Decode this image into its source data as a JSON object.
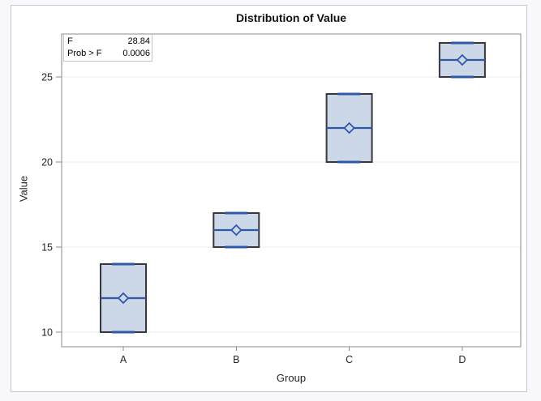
{
  "window": {
    "background_color": "#f8f8fc",
    "paper_color": "#ffffff",
    "paper_border_color": "#c9c9c9"
  },
  "chart_data": {
    "type": "boxplot",
    "title": "Distribution of Value",
    "xlabel": "Group",
    "ylabel": "Value",
    "categories": [
      "A",
      "B",
      "C",
      "D"
    ],
    "yticks": [
      10,
      15,
      20,
      25
    ],
    "ylim": [
      9.1,
      27.5
    ],
    "grid": "horizontal-major",
    "legend": "none",
    "series": [
      {
        "group": "A",
        "whisker_low": 10,
        "q1": 10,
        "median": 12,
        "mean": 12,
        "q3": 14,
        "whisker_high": 14
      },
      {
        "group": "B",
        "whisker_low": 15,
        "q1": 15,
        "median": 16,
        "mean": 16,
        "q3": 17,
        "whisker_high": 17
      },
      {
        "group": "C",
        "whisker_low": 20,
        "q1": 20,
        "median": 22,
        "mean": 22,
        "q3": 24,
        "whisker_high": 24
      },
      {
        "group": "D",
        "whisker_low": 25,
        "q1": 25,
        "median": 26,
        "mean": 26,
        "q3": 27,
        "whisker_high": 27
      }
    ],
    "stats_inset": {
      "rows": [
        {
          "label": "F",
          "value": "28.84"
        },
        {
          "label": "Prob > F",
          "value": "0.0006"
        }
      ]
    },
    "colors": {
      "box_fill": "#ccd7e8",
      "box_stroke": "#38383c",
      "median": "#2d59a8",
      "mean_marker": "#2d59a8",
      "whisker_cap": "#2d59a8",
      "frame": "#8a8a8a",
      "gridline": "#ededed",
      "tick_text": "#262626"
    }
  }
}
